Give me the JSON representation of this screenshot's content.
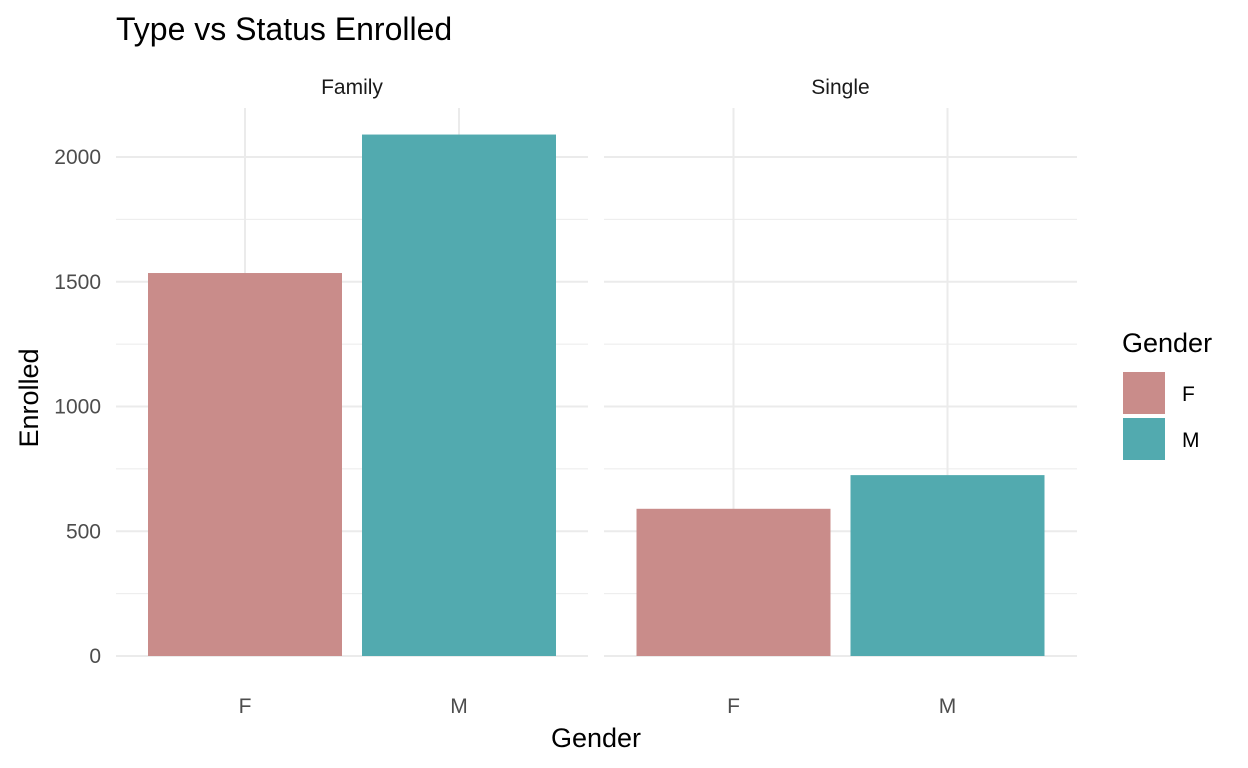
{
  "chart_data": {
    "type": "bar",
    "title": "Type vs Status Enrolled",
    "xlabel": "Gender",
    "ylabel": "Enrolled",
    "ylim": [
      0,
      2100
    ],
    "yticks": [
      0,
      500,
      1000,
      1500,
      2000
    ],
    "grid": true,
    "categories": [
      "F",
      "M"
    ],
    "facets": [
      {
        "label": "Family",
        "values": [
          1535,
          2090
        ]
      },
      {
        "label": "Single",
        "values": [
          590,
          725
        ]
      }
    ],
    "legend": {
      "title": "Gender",
      "position": "right",
      "entries": [
        {
          "label": "F",
          "color": "#C98C8A"
        },
        {
          "label": "M",
          "color": "#52AAAF"
        }
      ]
    },
    "colors": {
      "F": "#C98C8A",
      "M": "#52AAAF",
      "grid": "#EBEBEB"
    }
  }
}
